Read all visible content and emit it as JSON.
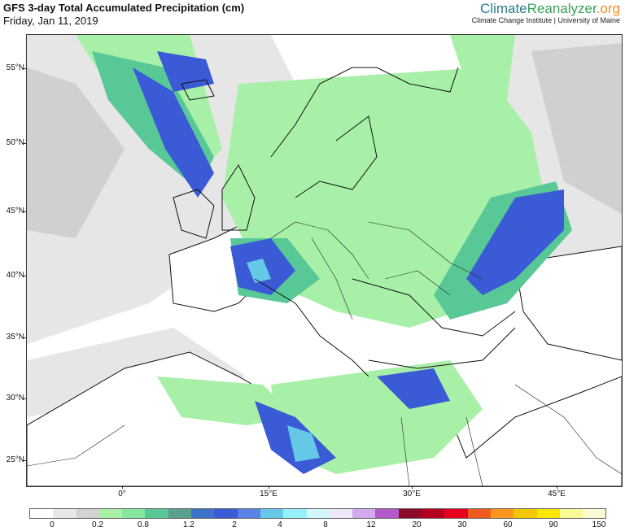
{
  "header": {
    "title": "GFS 3-day Total Accumulated Precipitation (cm)",
    "subtitle": "Friday, Jan 11, 2019"
  },
  "brand": {
    "name_part1": "Climate",
    "name_part2": "Reanalyzer",
    "name_part3": ".org",
    "tagline": "Climate Change Institute | University of Maine"
  },
  "map": {
    "lat_labels": [
      "55°N",
      "50°N",
      "45°N",
      "40°N",
      "35°N",
      "30°N",
      "25°N"
    ],
    "lon_labels": [
      "0°",
      "15°E",
      "30°E",
      "45°E"
    ],
    "lon_range": [
      -10,
      50
    ],
    "lat_range": [
      23,
      57
    ]
  },
  "colorbar": {
    "colors": [
      "#ffffff",
      "#e8e8e8",
      "#d2d2d2",
      "#a8f0a8",
      "#84e6a0",
      "#58c896",
      "#5aa08c",
      "#3a73c8",
      "#3a5ad6",
      "#5a82e6",
      "#64c8e6",
      "#96f0fa",
      "#d2f8fa",
      "#f0e6fa",
      "#d2aaf0",
      "#b45ac8",
      "#8c0a28",
      "#b4001e",
      "#e6001e",
      "#f05a1e",
      "#fa961e",
      "#f0c800",
      "#fae600",
      "#fafa96",
      "#fafad2"
    ],
    "labels": [
      "0",
      "0.2",
      "0.8",
      "1.2",
      "2",
      "4",
      "8",
      "12",
      "20",
      "30",
      "60",
      "90",
      "150"
    ]
  }
}
